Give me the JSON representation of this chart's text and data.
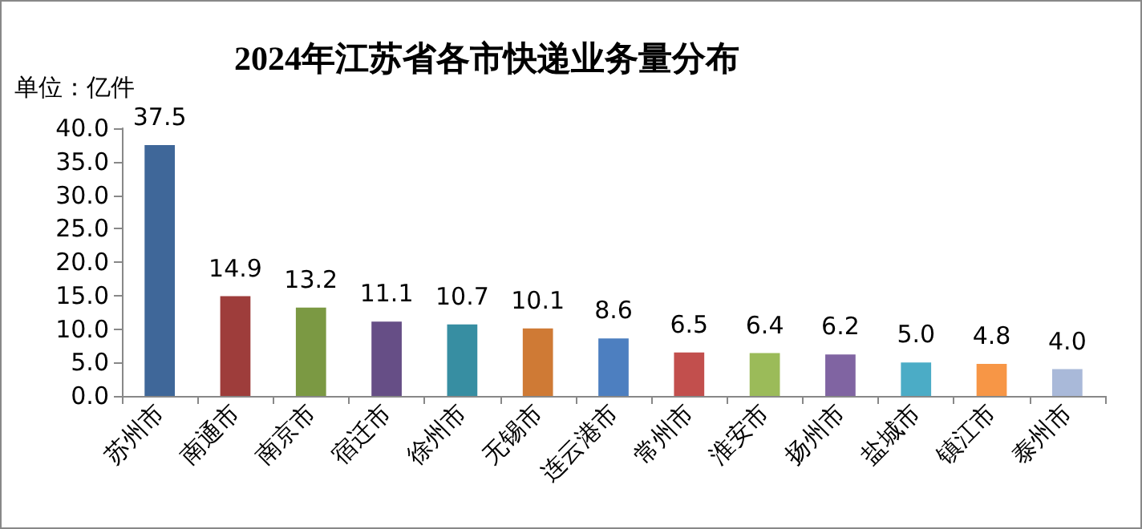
{
  "chart_data": {
    "type": "bar",
    "title": "2024年江苏省各市快递业务量分布",
    "ylabel": "单位：亿件",
    "categories": [
      "苏州市",
      "南通市",
      "南京市",
      "宿迁市",
      "徐州市",
      "无锡市",
      "连云港市",
      "常州市",
      "淮安市",
      "扬州市",
      "盐城市",
      "镇江市",
      "泰州市"
    ],
    "values": [
      37.5,
      14.9,
      13.2,
      11.1,
      10.7,
      10.1,
      8.6,
      6.5,
      6.4,
      6.2,
      5.0,
      4.8,
      4.0
    ],
    "value_labels": [
      "37.5",
      "14.9",
      "13.2",
      "11.1",
      "10.7",
      "10.1",
      "8.6",
      "6.5",
      "6.4",
      "6.2",
      "5.0",
      "4.8",
      "4.0"
    ],
    "colors": [
      "#3f6799",
      "#9e3d3b",
      "#7b9943",
      "#664e86",
      "#378ea2",
      "#cf7a35",
      "#4d7fc0",
      "#c24f4d",
      "#9bbb59",
      "#8064a2",
      "#4bacc6",
      "#f79646",
      "#a9b9d9"
    ],
    "ylim": [
      0,
      40
    ],
    "yticks": [
      {
        "value": 0,
        "label": "0.0"
      },
      {
        "value": 5,
        "label": "5.0"
      },
      {
        "value": 10,
        "label": "10.0"
      },
      {
        "value": 15,
        "label": "15.0"
      },
      {
        "value": 20,
        "label": "20.0"
      },
      {
        "value": 25,
        "label": "25.0"
      },
      {
        "value": 30,
        "label": "30.0"
      },
      {
        "value": 35,
        "label": "35.0"
      },
      {
        "value": 40,
        "label": "40.0"
      }
    ],
    "grid": false
  }
}
